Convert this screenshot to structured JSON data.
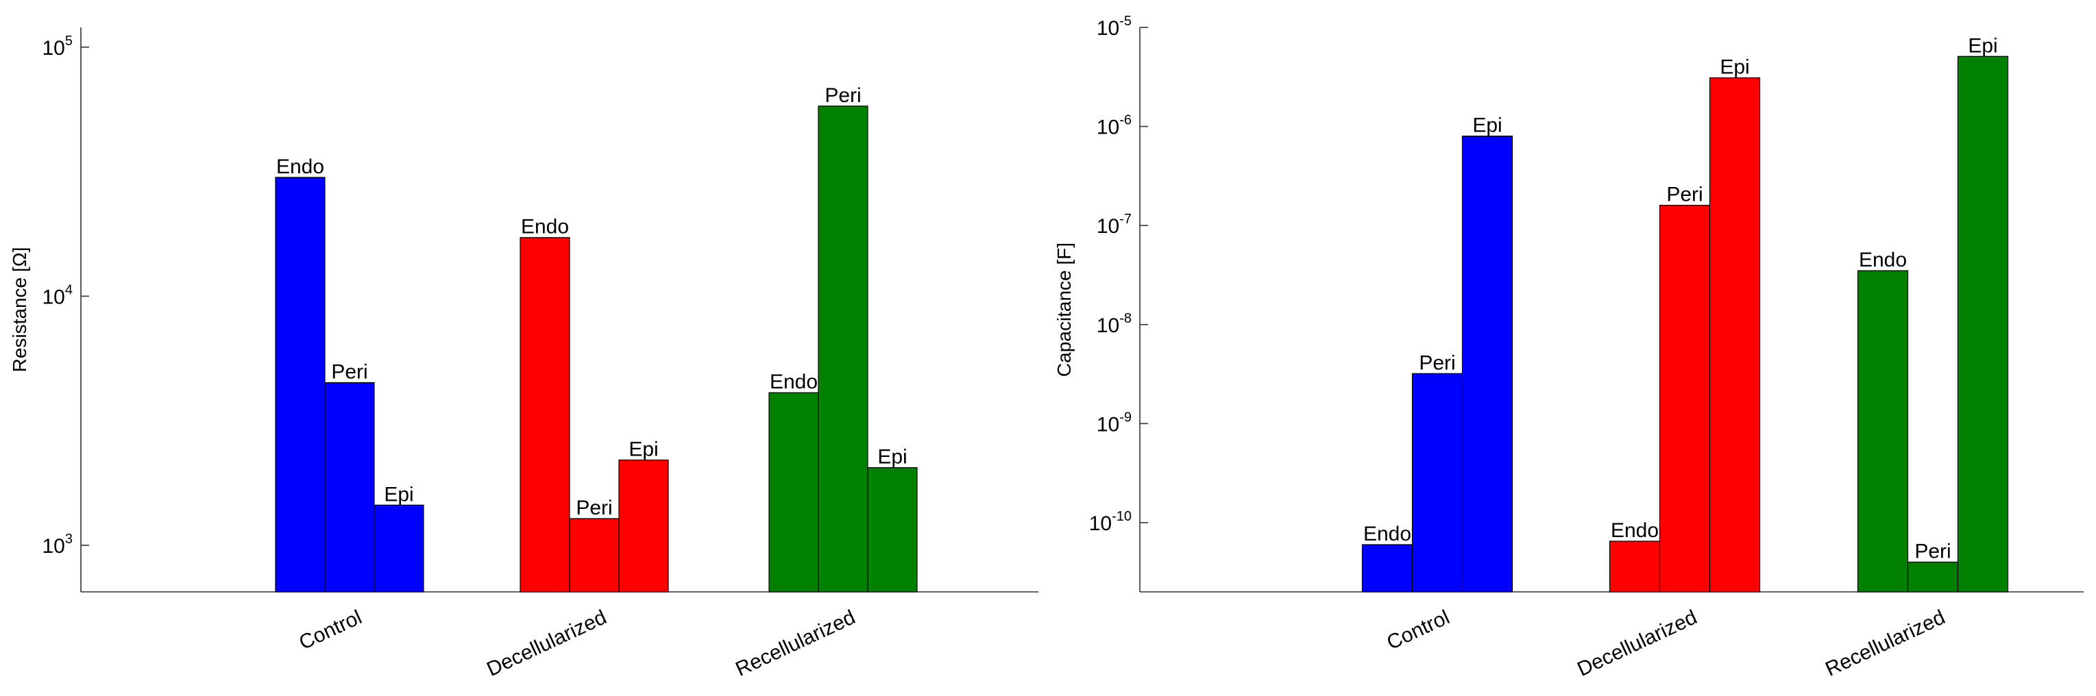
{
  "chart_data": [
    {
      "type": "bar",
      "scale": "log",
      "ylabel": "Resistance [Ω]",
      "ylim": [
        650,
        120000
      ],
      "yticks": [
        {
          "base": "10",
          "exp": "3",
          "value": 1000
        },
        {
          "base": "10",
          "exp": "4",
          "value": 10000
        },
        {
          "base": "10",
          "exp": "5",
          "value": 100000
        }
      ],
      "categories": [
        "Control",
        "Decellularized",
        "Recellularized"
      ],
      "series_labels": [
        "Endo",
        "Peri",
        "Epi"
      ],
      "colors": {
        "Control": "#0000ff",
        "Decellularized": "#ff0000",
        "Recellularized": "#008000"
      },
      "values": [
        [
          30000,
          4500,
          1450
        ],
        [
          17200,
          1280,
          2200
        ],
        [
          4100,
          58000,
          2050
        ]
      ]
    },
    {
      "type": "bar",
      "scale": "log",
      "ylabel": "Capacitance [F]",
      "ylim": [
        2e-11,
        1e-05
      ],
      "yticks": [
        {
          "base": "10",
          "exp": "-10",
          "value": 1e-10
        },
        {
          "base": "10",
          "exp": "-9",
          "value": 1e-09
        },
        {
          "base": "10",
          "exp": "-8",
          "value": 1e-08
        },
        {
          "base": "10",
          "exp": "-7",
          "value": 1e-07
        },
        {
          "base": "10",
          "exp": "-6",
          "value": 1e-06
        },
        {
          "base": "10",
          "exp": "-5",
          "value": 1e-05
        }
      ],
      "categories": [
        "Control",
        "Decellularized",
        "Recellularized"
      ],
      "series_labels": [
        "Endo",
        "Peri",
        "Epi"
      ],
      "colors": {
        "Control": "#0000ff",
        "Decellularized": "#ff0000",
        "Recellularized": "#008000"
      },
      "values": [
        [
          6e-11,
          3.2e-09,
          8e-07
        ],
        [
          6.5e-11,
          1.6e-07,
          3.1e-06
        ],
        [
          3.5e-08,
          4e-11,
          5.1e-06
        ]
      ]
    }
  ]
}
